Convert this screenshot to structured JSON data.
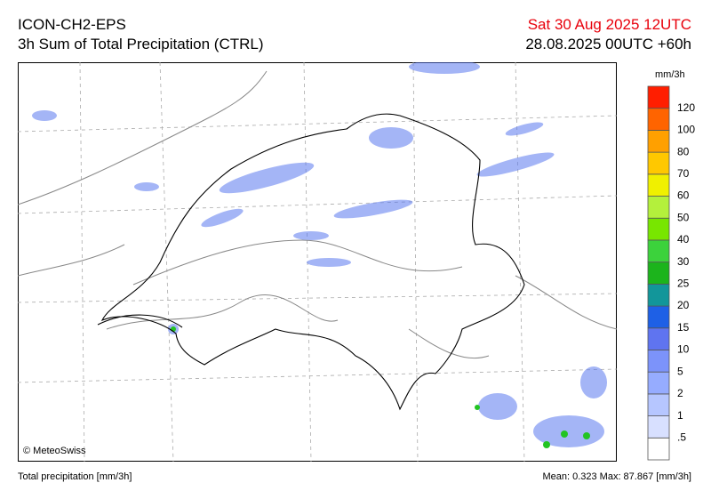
{
  "header": {
    "title": "ICON-CH2-EPS",
    "subtitle": "3h Sum of Total Precipitation (CTRL)",
    "valid_time": "Sat 30 Aug 2025 12UTC",
    "run_time": "28.08.2025 00UTC +60h"
  },
  "map": {
    "copyright": "© MeteoSwiss"
  },
  "legend": {
    "unit": "mm/3h",
    "labels": [
      ".5",
      "1",
      "2",
      "5",
      "10",
      "15",
      "20",
      "25",
      "30",
      "40",
      "50",
      "60",
      "70",
      "80",
      "100",
      "120"
    ],
    "colors": [
      "#ffffff",
      "#d8e0ff",
      "#b6c6ff",
      "#96acff",
      "#7c93fa",
      "#5f74f0",
      "#1e60e6",
      "#12969a",
      "#1cb41c",
      "#3cd23c",
      "#78e600",
      "#b4f03c",
      "#f0f000",
      "#ffc800",
      "#ffa000",
      "#ff6400",
      "#ff1e00"
    ]
  },
  "footer": {
    "variable": "Total precipitation [mm/3h]",
    "stats": "Mean:  0.323 Max:  87.867 [mm/3h]"
  }
}
